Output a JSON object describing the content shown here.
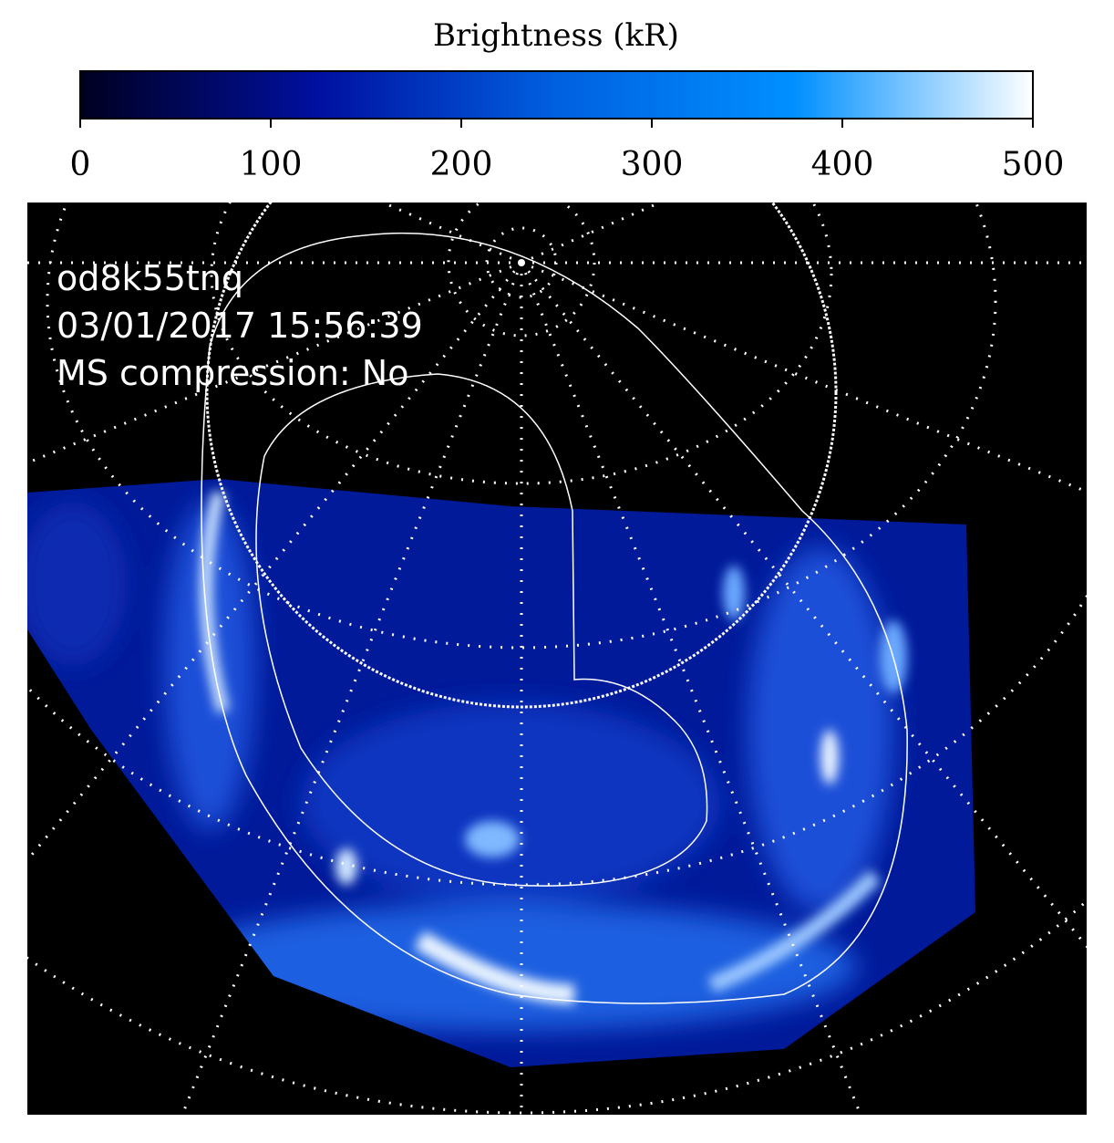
{
  "chart_data": {
    "type": "image",
    "colorbar": {
      "label": "Brightness (kR)",
      "lim": [
        0,
        500
      ],
      "ticks": [
        0,
        100,
        200,
        300,
        400,
        500
      ],
      "colors": [
        "#000020",
        "#0010a0",
        "#0060e0",
        "#0090ff",
        "#ffffff"
      ]
    },
    "annotations": [
      "od8k55tnq",
      "03/01/2017 15:56:39",
      "MS compression: No"
    ]
  }
}
